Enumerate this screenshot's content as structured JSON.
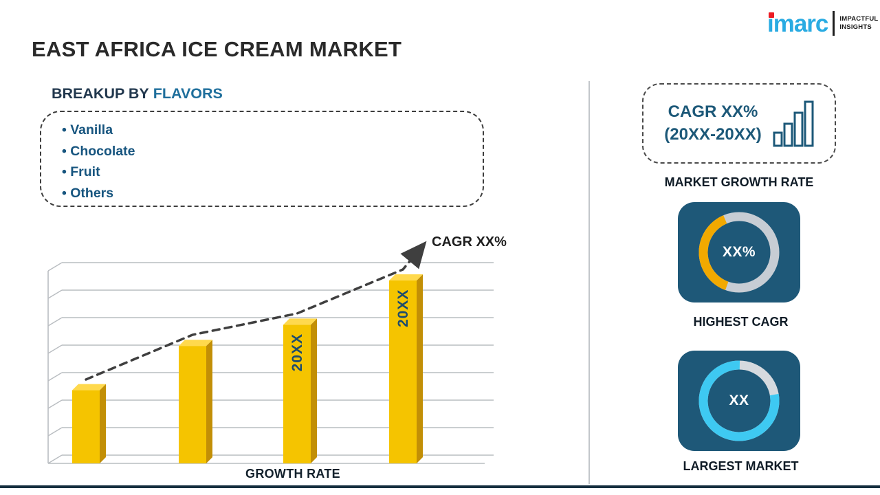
{
  "logo": {
    "brand": "imarc",
    "tagline_line1": "IMPACTFUL",
    "tagline_line2": "INSIGHTS"
  },
  "title": "EAST AFRICA ICE CREAM MARKET",
  "breakup": {
    "heading_prefix": "BREAKUP BY",
    "heading_highlight": "FLAVORS",
    "items": [
      "Vanilla",
      "Chocolate",
      "Fruit",
      "Others"
    ]
  },
  "chart_data": [
    {
      "type": "bar",
      "title": "",
      "categories": [
        "",
        "",
        "20XX",
        "20XX"
      ],
      "values": [
        38,
        61,
        72,
        95
      ],
      "ylim": [
        0,
        100
      ],
      "xlabel": "GROWTH RATE",
      "ylabel": "",
      "grid": true,
      "legend": false,
      "bar_color": "#F5C400",
      "bar_side_color": "#C28F06",
      "bar_top_color": "#FFD94D",
      "trend": {
        "label": "CAGR XX%",
        "style": "dashed",
        "color": "#3F3F3F"
      }
    },
    {
      "type": "pie",
      "variant": "donut",
      "label": "HIGHEST CAGR",
      "center_text": "XX%",
      "start_angle": 200,
      "slices": [
        {
          "name": "highlight",
          "fraction": 0.38,
          "color": "#F2A900"
        },
        {
          "name": "remainder",
          "fraction": 0.62,
          "color": "#C7CDD4"
        }
      ]
    },
    {
      "type": "pie",
      "variant": "donut",
      "label": "LARGEST MARKET",
      "center_text": "XX",
      "start_angle": 80,
      "slices": [
        {
          "name": "highlight",
          "fraction": 0.78,
          "color": "#3EC9F2"
        },
        {
          "name": "remainder",
          "fraction": 0.22,
          "color": "#D5DADF"
        }
      ]
    }
  ],
  "right_panel": {
    "growth_box": {
      "line1": "CAGR XX%",
      "line2": "(20XX-20XX)",
      "caption": "MARKET GROWTH RATE"
    }
  },
  "colors": {
    "navy_tile": "#1E587A",
    "brand_cyan": "#29ABE2",
    "brand_red": "#EC1C24",
    "heading_blue": "#1F6F9C",
    "bullet_navy": "#17557F",
    "bar_yellow": "#F5C400"
  }
}
